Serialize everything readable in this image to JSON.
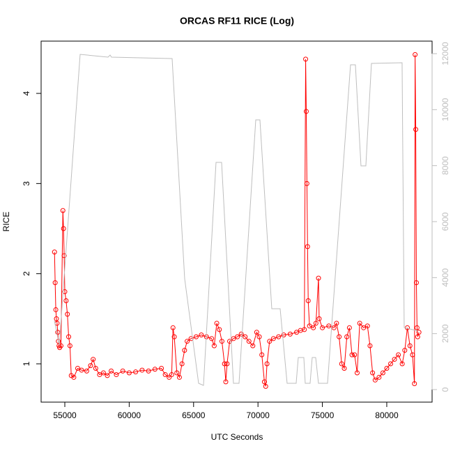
{
  "chart_data": {
    "type": "scatter-line",
    "title": "ORCAS RF11 RICE (Log)",
    "x_label": "UTC Seconds",
    "y_label": "RICE",
    "xlim": [
      53160,
      83520
    ],
    "ylim": [
      0.575,
      4.58
    ],
    "y2lim": [
      -448,
      12448
    ],
    "xticks": [
      55000,
      60000,
      65000,
      70000,
      75000,
      80000
    ],
    "yticks": [
      1,
      2,
      3,
      4
    ],
    "y2ticks": [
      0,
      2000,
      4000,
      6000,
      8000,
      10000,
      12000
    ],
    "y2_color": "#bebebe",
    "series": [
      {
        "color": "#ff0000",
        "style": "points-lines",
        "x": [
          54200,
          54250,
          54300,
          54350,
          54400,
          54450,
          54500,
          54550,
          54600,
          54700,
          54850,
          54900,
          54950,
          55000,
          55100,
          55200,
          55300,
          55400,
          55500,
          55700,
          56000,
          56300,
          56700,
          57000,
          57200,
          57400,
          57700,
          58000,
          58300,
          58600,
          59000,
          59500,
          60000,
          60500,
          61000,
          61500,
          62000,
          62500,
          62800,
          63100,
          63300,
          63400,
          63500,
          63700,
          63900,
          64100,
          64300,
          64500,
          64800,
          65200,
          65600,
          66000,
          66400,
          66600,
          66800,
          67000,
          67200,
          67400,
          67500,
          67600,
          67800,
          68100,
          68400,
          68700,
          69000,
          69300,
          69600,
          69900,
          70100,
          70300,
          70500,
          70600,
          70700,
          70900,
          71200,
          71600,
          72000,
          72500,
          73000,
          73300,
          73600,
          73700,
          73750,
          73800,
          73850,
          73900,
          74000,
          74300,
          74500,
          74700,
          74750,
          75000,
          75500,
          75900,
          76100,
          76300,
          76500,
          76700,
          76900,
          77100,
          77300,
          77500,
          77700,
          77900,
          78200,
          78500,
          78700,
          78900,
          79100,
          79400,
          79700,
          80000,
          80300,
          80600,
          80900,
          81200,
          81400,
          81600,
          81800,
          82000,
          82150,
          82200,
          82250,
          82300,
          82350,
          82400,
          82500
        ],
        "values": [
          2.24,
          1.9,
          1.6,
          1.5,
          1.45,
          1.35,
          1.25,
          1.2,
          1.18,
          1.2,
          2.7,
          2.5,
          2.2,
          1.8,
          1.7,
          1.55,
          1.3,
          1.2,
          0.87,
          0.85,
          0.95,
          0.93,
          0.92,
          0.98,
          1.05,
          0.95,
          0.88,
          0.9,
          0.87,
          0.92,
          0.88,
          0.92,
          0.9,
          0.91,
          0.93,
          0.92,
          0.94,
          0.95,
          0.88,
          0.85,
          0.88,
          1.4,
          1.3,
          0.9,
          0.85,
          1.0,
          1.15,
          1.25,
          1.28,
          1.3,
          1.32,
          1.3,
          1.28,
          1.2,
          1.45,
          1.38,
          1.25,
          1.0,
          0.8,
          1.0,
          1.25,
          1.28,
          1.3,
          1.33,
          1.3,
          1.25,
          1.2,
          1.35,
          1.3,
          1.1,
          0.8,
          0.75,
          1.0,
          1.25,
          1.28,
          1.3,
          1.32,
          1.33,
          1.35,
          1.37,
          1.38,
          4.38,
          3.8,
          3.0,
          2.3,
          1.7,
          1.42,
          1.4,
          1.45,
          1.95,
          1.5,
          1.4,
          1.42,
          1.4,
          1.45,
          1.3,
          1.0,
          0.95,
          1.3,
          1.4,
          1.1,
          1.1,
          0.9,
          1.45,
          1.4,
          1.42,
          1.2,
          0.9,
          0.82,
          0.85,
          0.9,
          0.95,
          1.0,
          1.05,
          1.1,
          1.0,
          1.15,
          1.4,
          1.2,
          1.1,
          0.78,
          4.43,
          3.6,
          1.9,
          1.4,
          1.3,
          1.35
        ]
      },
      {
        "color": "#bebebe",
        "style": "line",
        "axis": "y2",
        "x": [
          54190,
          54570,
          56190,
          58355,
          58517,
          58625,
          63225,
          63333,
          64307,
          65389,
          65768,
          66742,
          67175,
          68095,
          68528,
          69827,
          70151,
          71071,
          71721,
          72262,
          72965,
          73128,
          73560,
          73669,
          74047,
          74210,
          74480,
          74697,
          75400,
          77186,
          77565,
          77998,
          78376,
          78809,
          81190,
          81353,
          82435
        ],
        "values": [
          2465,
          1594,
          11975,
          11875,
          11950,
          11875,
          11825,
          11825,
          3959,
          225,
          150,
          8116,
          8116,
          225,
          225,
          9635,
          9635,
          2889,
          2889,
          225,
          225,
          1146,
          1146,
          225,
          225,
          1146,
          1146,
          225,
          225,
          11602,
          11602,
          7991,
          7991,
          11652,
          11677,
          2217,
          2092
        ]
      }
    ]
  }
}
